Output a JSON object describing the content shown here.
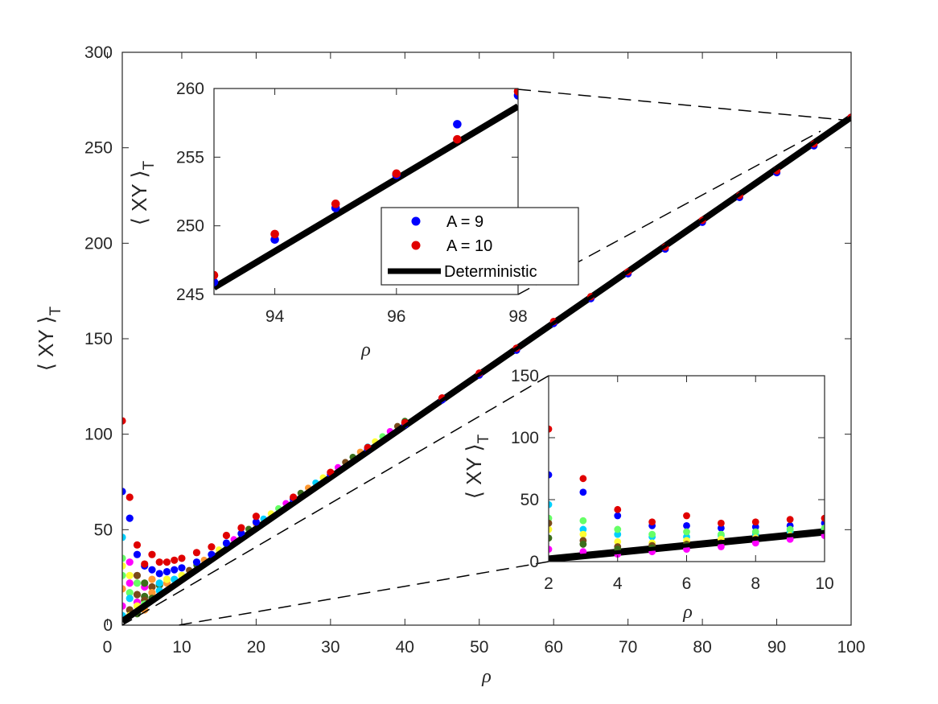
{
  "chart_data": [
    {
      "id": "main",
      "type": "scatter",
      "xlabel": "ρ",
      "ylabel": "⟨ XY ⟩",
      "ylabel_subscript": "T",
      "xlim": [
        2,
        100
      ],
      "ylim": [
        0,
        300
      ],
      "xticks": [
        0,
        10,
        20,
        30,
        40,
        50,
        60,
        70,
        80,
        90,
        100
      ],
      "yticks": [
        0,
        50,
        100,
        150,
        200,
        250,
        300
      ],
      "grid": false,
      "colors": {
        "A9": "#0000ff",
        "A10": "#e00000",
        "deterministic": "#000000"
      },
      "other_series_colors": [
        "#00cfff",
        "#ffff33",
        "#66ff66",
        "#ff00ff",
        "#7a4a1a",
        "#3a6e1a",
        "#ff9933"
      ],
      "series": [
        {
          "name": "A = 9",
          "color": "#0000ff",
          "x": [
            2,
            3,
            4,
            5,
            6,
            7,
            8,
            9,
            10,
            12,
            14,
            16,
            18,
            20,
            25,
            30,
            35,
            40,
            45,
            50,
            55,
            60,
            65,
            70,
            75,
            80,
            85,
            90,
            95,
            100
          ],
          "y": [
            70,
            56,
            37,
            31,
            29,
            27,
            28,
            29,
            30,
            33,
            37,
            43,
            48,
            54,
            66,
            79,
            92,
            105,
            118,
            131,
            144,
            158,
            171,
            184,
            197,
            211,
            224,
            237,
            251,
            266
          ]
        },
        {
          "name": "A = 10",
          "color": "#e00000",
          "x": [
            2,
            3,
            4,
            5,
            6,
            7,
            8,
            9,
            10,
            12,
            14,
            16,
            18,
            20,
            25,
            30,
            35,
            40,
            45,
            50,
            55,
            60,
            65,
            70,
            75,
            80,
            85,
            90,
            95,
            100
          ],
          "y": [
            107,
            67,
            42,
            32,
            37,
            33,
            33,
            34,
            35,
            38,
            41,
            47,
            51,
            57,
            67,
            80,
            93,
            106,
            119,
            132,
            145,
            159,
            172,
            185,
            198,
            212,
            225,
            238,
            252,
            266
          ]
        },
        {
          "name": "Deterministic",
          "type": "line",
          "color": "#000000",
          "x": [
            2,
            100
          ],
          "y": [
            2,
            266
          ]
        }
      ]
    },
    {
      "id": "inset_top",
      "type": "scatter",
      "xlabel": "ρ",
      "ylabel": "⟨ XY ⟩",
      "ylabel_subscript": "T",
      "xlim": [
        93,
        98
      ],
      "ylim": [
        245,
        260
      ],
      "xticks": [
        94,
        96,
        98
      ],
      "yticks": [
        245,
        250,
        255,
        260
      ],
      "legend_position": "bottom-right",
      "series": [
        {
          "name": "A = 9",
          "color": "#0000ff",
          "x": [
            93,
            94,
            95,
            96,
            97,
            98
          ],
          "y": [
            245.9,
            249.0,
            251.3,
            253.7,
            257.4,
            259.5
          ]
        },
        {
          "name": "A = 10",
          "color": "#e00000",
          "x": [
            93,
            94,
            95,
            96,
            97,
            98
          ],
          "y": [
            246.4,
            249.4,
            251.6,
            253.8,
            256.3,
            259.8
          ]
        },
        {
          "name": "Deterministic",
          "type": "line",
          "color": "#000000",
          "x": [
            93,
            98
          ],
          "y": [
            245.5,
            258.7
          ]
        }
      ]
    },
    {
      "id": "inset_bottom",
      "type": "scatter",
      "xlabel": "ρ",
      "ylabel": "⟨ XY ⟩",
      "ylabel_subscript": "T",
      "xlim": [
        2,
        10
      ],
      "ylim": [
        0,
        150
      ],
      "xticks": [
        2,
        4,
        6,
        8,
        10
      ],
      "yticks": [
        0,
        50,
        100,
        150
      ],
      "series": [
        {
          "name": "A = 9",
          "color": "#0000ff",
          "x": [
            2,
            3,
            4,
            5,
            6,
            7,
            8,
            9,
            10
          ],
          "y": [
            70,
            56,
            37,
            29,
            29,
            27,
            28,
            29,
            31
          ]
        },
        {
          "name": "A = 10",
          "color": "#e00000",
          "x": [
            2,
            3,
            4,
            5,
            6,
            7,
            8,
            9,
            10
          ],
          "y": [
            107,
            67,
            42,
            32,
            37,
            31,
            32,
            34,
            35
          ]
        },
        {
          "name": "",
          "color": "#00cfff",
          "x": [
            2,
            3,
            4,
            5,
            6,
            7,
            8,
            9,
            10
          ],
          "y": [
            46,
            26,
            22,
            20,
            20,
            21,
            22,
            24,
            26
          ]
        },
        {
          "name": "",
          "color": "#66ff66",
          "x": [
            2,
            3,
            4,
            5,
            6,
            7,
            8,
            9,
            10
          ],
          "y": [
            35,
            33,
            26,
            22,
            24,
            22,
            24,
            26,
            27
          ]
        },
        {
          "name": "",
          "color": "#ffff33",
          "x": [
            2,
            3,
            4,
            5,
            6,
            7,
            8,
            9,
            10
          ],
          "y": [
            26,
            22,
            16,
            15,
            17,
            18,
            19,
            21,
            23
          ]
        },
        {
          "name": "",
          "color": "#7a4a1a",
          "x": [
            2,
            3,
            4,
            5,
            6,
            7,
            8,
            9,
            10
          ],
          "y": [
            31,
            17,
            12,
            13,
            14,
            15,
            18,
            20,
            22
          ]
        },
        {
          "name": "",
          "color": "#3a6e1a",
          "x": [
            2,
            3,
            4,
            5,
            6,
            7,
            8,
            9,
            10
          ],
          "y": [
            19,
            14,
            10,
            11,
            13,
            14,
            16,
            19,
            22
          ]
        },
        {
          "name": "",
          "color": "#ff00ff",
          "x": [
            2,
            3,
            4,
            5,
            6,
            7,
            8,
            9,
            10
          ],
          "y": [
            10,
            8,
            6,
            8,
            10,
            12,
            15,
            18,
            21
          ]
        },
        {
          "name": "Deterministic",
          "type": "line",
          "color": "#000000",
          "x": [
            2,
            10
          ],
          "y": [
            2,
            24
          ]
        }
      ]
    }
  ]
}
